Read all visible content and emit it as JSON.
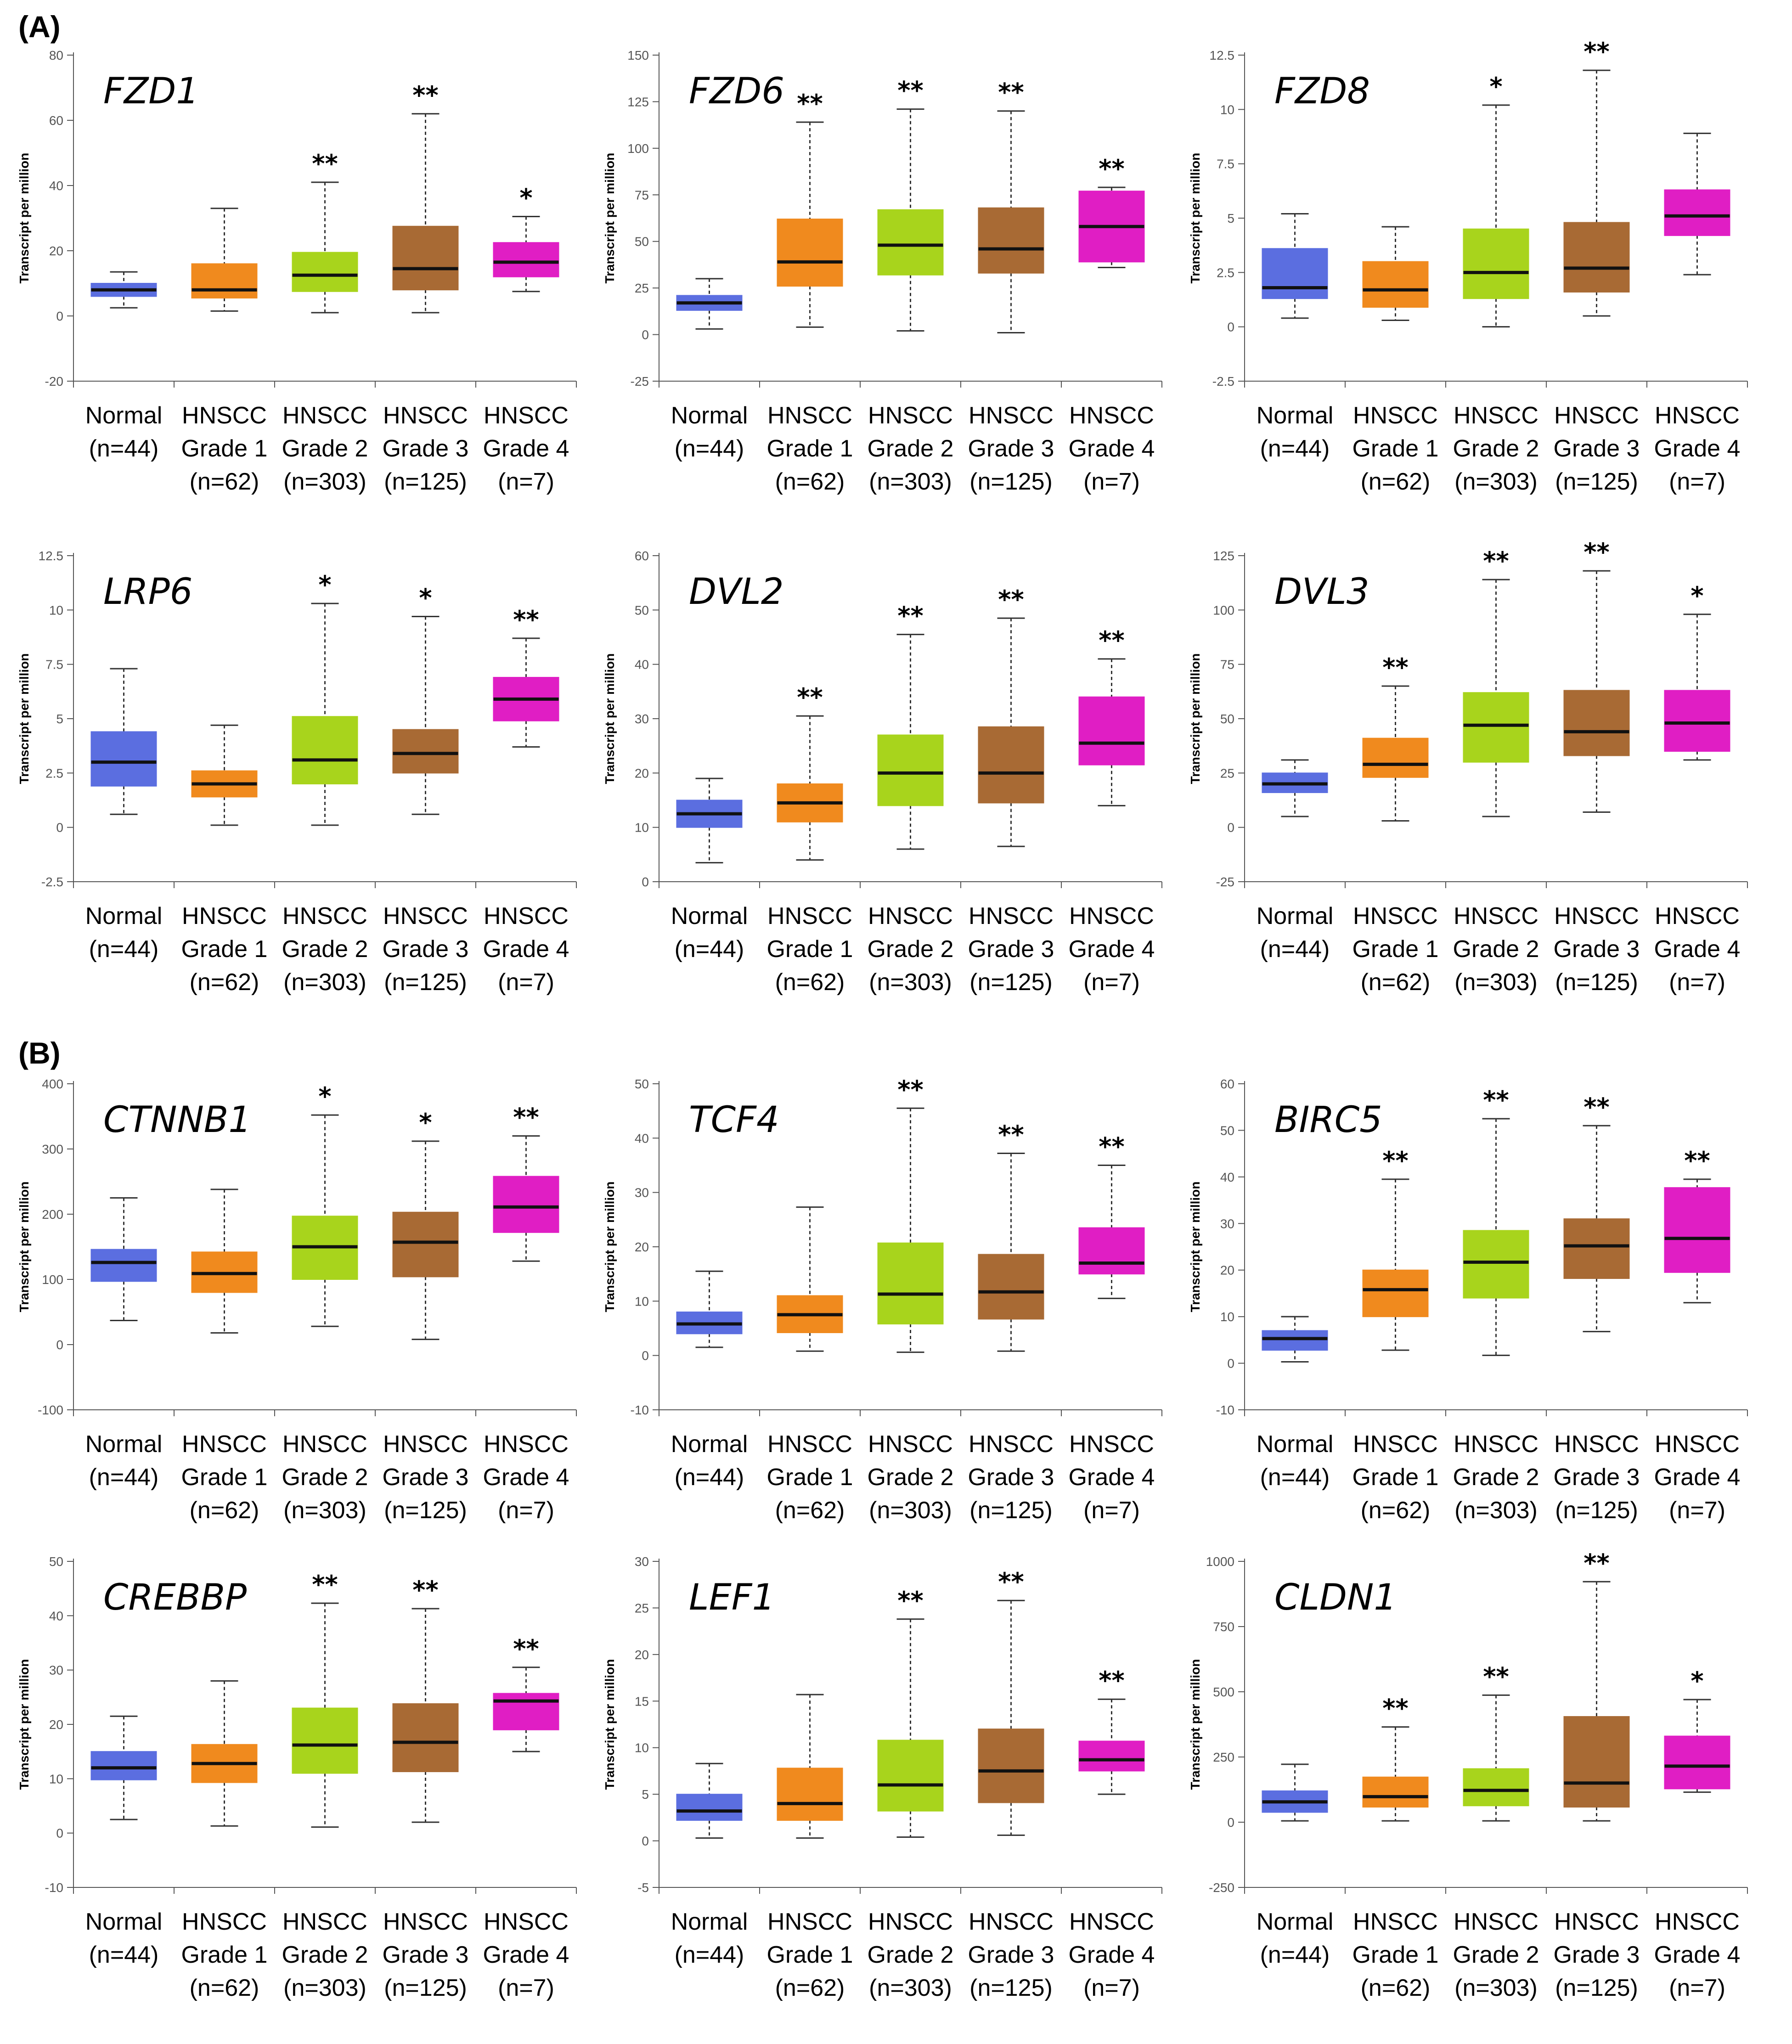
{
  "panels": {
    "A": "(A)",
    "B": "(B)"
  },
  "colors": {
    "Normal": "#5b6ee0",
    "Grade 1": "#f08a1e",
    "Grade 2": "#a8d41c",
    "Grade 3": "#a86a34",
    "Grade 4": "#e01ec4"
  },
  "chart_data": [
    {
      "type": "box",
      "title": "FZD1",
      "ylabel": "Transcript per million",
      "ylim": [
        -20,
        80
      ],
      "yticks": [
        -20,
        0,
        20,
        40,
        60,
        80
      ],
      "categories": [
        [
          "Normal",
          "(n=44)"
        ],
        [
          "HNSCC",
          "Grade 1",
          "(n=62)"
        ],
        [
          "HNSCC",
          "Grade 2",
          "(n=303)"
        ],
        [
          "HNSCC",
          "Grade 3",
          "(n=125)"
        ],
        [
          "HNSCC",
          "Grade 4",
          "(n=7)"
        ]
      ],
      "boxes": [
        {
          "min": 2.5,
          "q1": 6,
          "median": 8,
          "q3": 10,
          "max": 13.5,
          "sig": ""
        },
        {
          "min": 1.5,
          "q1": 5.5,
          "median": 8,
          "q3": 16,
          "max": 33,
          "sig": ""
        },
        {
          "min": 1,
          "q1": 7.5,
          "median": 12.5,
          "q3": 19.5,
          "max": 41,
          "sig": "**"
        },
        {
          "min": 1,
          "q1": 8,
          "median": 14.5,
          "q3": 27.5,
          "max": 62,
          "sig": "**"
        },
        {
          "min": 7.5,
          "q1": 12,
          "median": 16.5,
          "q3": 22.5,
          "max": 30.5,
          "sig": "*"
        }
      ]
    },
    {
      "type": "box",
      "title": "FZD6",
      "ylabel": "Transcript per million",
      "ylim": [
        -25,
        150
      ],
      "yticks": [
        -25,
        0,
        25,
        50,
        75,
        100,
        125,
        150
      ],
      "categories": [
        [
          "Normal",
          "(n=44)"
        ],
        [
          "HNSCC",
          "Grade 1",
          "(n=62)"
        ],
        [
          "HNSCC",
          "Grade 2",
          "(n=303)"
        ],
        [
          "HNSCC",
          "Grade 3",
          "(n=125)"
        ],
        [
          "HNSCC",
          "Grade 4",
          "(n=7)"
        ]
      ],
      "boxes": [
        {
          "min": 3,
          "q1": 13,
          "median": 17,
          "q3": 21,
          "max": 30,
          "sig": ""
        },
        {
          "min": 4,
          "q1": 26,
          "median": 39,
          "q3": 62,
          "max": 114,
          "sig": "**"
        },
        {
          "min": 2,
          "q1": 32,
          "median": 48,
          "q3": 67,
          "max": 121,
          "sig": "**"
        },
        {
          "min": 1,
          "q1": 33,
          "median": 46,
          "q3": 68,
          "max": 120,
          "sig": "**"
        },
        {
          "min": 36,
          "q1": 39,
          "median": 58,
          "q3": 77,
          "max": 79,
          "sig": "**"
        }
      ]
    },
    {
      "type": "box",
      "title": "FZD8",
      "ylabel": "Transcript per million",
      "ylim": [
        -2.5,
        12.5
      ],
      "yticks": [
        -2.5,
        0,
        2.5,
        5,
        7.5,
        10,
        12.5
      ],
      "categories": [
        [
          "Normal",
          "(n=44)"
        ],
        [
          "HNSCC",
          "Grade 1",
          "(n=62)"
        ],
        [
          "HNSCC",
          "Grade 2",
          "(n=303)"
        ],
        [
          "HNSCC",
          "Grade 3",
          "(n=125)"
        ],
        [
          "HNSCC",
          "Grade 4",
          "(n=7)"
        ]
      ],
      "boxes": [
        {
          "min": 0.4,
          "q1": 1.3,
          "median": 1.8,
          "q3": 3.6,
          "max": 5.2,
          "sig": ""
        },
        {
          "min": 0.3,
          "q1": 0.9,
          "median": 1.7,
          "q3": 3,
          "max": 4.6,
          "sig": ""
        },
        {
          "min": 0,
          "q1": 1.3,
          "median": 2.5,
          "q3": 4.5,
          "max": 10.2,
          "sig": "*"
        },
        {
          "min": 0.5,
          "q1": 1.6,
          "median": 2.7,
          "q3": 4.8,
          "max": 11.8,
          "sig": "**"
        },
        {
          "min": 2.4,
          "q1": 4.2,
          "median": 5.1,
          "q3": 6.3,
          "max": 8.9,
          "sig": ""
        }
      ]
    },
    {
      "type": "box",
      "title": "LRP6",
      "ylabel": "Transcript per million",
      "ylim": [
        -2.5,
        12.5
      ],
      "yticks": [
        -2.5,
        0,
        2.5,
        5,
        7.5,
        10,
        12.5
      ],
      "categories": [
        [
          "Normal",
          "(n=44)"
        ],
        [
          "HNSCC",
          "Grade 1",
          "(n=62)"
        ],
        [
          "HNSCC",
          "Grade 2",
          "(n=303)"
        ],
        [
          "HNSCC",
          "Grade 3",
          "(n=125)"
        ],
        [
          "HNSCC",
          "Grade 4",
          "(n=7)"
        ]
      ],
      "boxes": [
        {
          "min": 0.6,
          "q1": 1.9,
          "median": 3,
          "q3": 4.4,
          "max": 7.3,
          "sig": ""
        },
        {
          "min": 0.1,
          "q1": 1.4,
          "median": 2,
          "q3": 2.6,
          "max": 4.7,
          "sig": ""
        },
        {
          "min": 0.1,
          "q1": 2,
          "median": 3.1,
          "q3": 5.1,
          "max": 10.3,
          "sig": "*"
        },
        {
          "min": 0.6,
          "q1": 2.5,
          "median": 3.4,
          "q3": 4.5,
          "max": 9.7,
          "sig": "*"
        },
        {
          "min": 3.7,
          "q1": 4.9,
          "median": 5.9,
          "q3": 6.9,
          "max": 8.7,
          "sig": "**"
        }
      ]
    },
    {
      "type": "box",
      "title": "DVL2",
      "ylabel": "Transcript per million",
      "ylim": [
        0,
        60
      ],
      "yticks": [
        0,
        10,
        20,
        30,
        40,
        50,
        60
      ],
      "categories": [
        [
          "Normal",
          "(n=44)"
        ],
        [
          "HNSCC",
          "Grade 1",
          "(n=62)"
        ],
        [
          "HNSCC",
          "Grade 2",
          "(n=303)"
        ],
        [
          "HNSCC",
          "Grade 3",
          "(n=125)"
        ],
        [
          "HNSCC",
          "Grade 4",
          "(n=7)"
        ]
      ],
      "boxes": [
        {
          "min": 3.5,
          "q1": 10,
          "median": 12.5,
          "q3": 15,
          "max": 19,
          "sig": ""
        },
        {
          "min": 4,
          "q1": 11,
          "median": 14.5,
          "q3": 18,
          "max": 30.5,
          "sig": "**"
        },
        {
          "min": 6,
          "q1": 14,
          "median": 20,
          "q3": 27,
          "max": 45.5,
          "sig": "**"
        },
        {
          "min": 6.5,
          "q1": 14.5,
          "median": 20,
          "q3": 28.5,
          "max": 48.5,
          "sig": "**"
        },
        {
          "min": 14,
          "q1": 21.5,
          "median": 25.5,
          "q3": 34,
          "max": 41,
          "sig": "**"
        }
      ]
    },
    {
      "type": "box",
      "title": "DVL3",
      "ylabel": "Transcript per million",
      "ylim": [
        -25,
        125
      ],
      "yticks": [
        -25,
        0,
        25,
        50,
        75,
        100,
        125
      ],
      "categories": [
        [
          "Normal",
          "(n=44)"
        ],
        [
          "HNSCC",
          "Grade 1",
          "(n=62)"
        ],
        [
          "HNSCC",
          "Grade 2",
          "(n=303)"
        ],
        [
          "HNSCC",
          "Grade 3",
          "(n=125)"
        ],
        [
          "HNSCC",
          "Grade 4",
          "(n=7)"
        ]
      ],
      "boxes": [
        {
          "min": 5,
          "q1": 16,
          "median": 20,
          "q3": 25,
          "max": 31,
          "sig": ""
        },
        {
          "min": 3,
          "q1": 23,
          "median": 29,
          "q3": 41,
          "max": 65,
          "sig": "**"
        },
        {
          "min": 5,
          "q1": 30,
          "median": 47,
          "q3": 62,
          "max": 114,
          "sig": "**"
        },
        {
          "min": 7,
          "q1": 33,
          "median": 44,
          "q3": 63,
          "max": 118,
          "sig": "**"
        },
        {
          "min": 31,
          "q1": 35,
          "median": 48,
          "q3": 63,
          "max": 98,
          "sig": "*"
        }
      ]
    },
    {
      "type": "box",
      "title": "CTNNB1",
      "ylabel": "Transcript per million",
      "ylim": [
        -100,
        400
      ],
      "yticks": [
        -100,
        0,
        100,
        200,
        300,
        400
      ],
      "categories": [
        [
          "Normal",
          "(n=44)"
        ],
        [
          "HNSCC",
          "Grade 1",
          "(n=62)"
        ],
        [
          "HNSCC",
          "Grade 2",
          "(n=303)"
        ],
        [
          "HNSCC",
          "Grade 3",
          "(n=125)"
        ],
        [
          "HNSCC",
          "Grade 4",
          "(n=7)"
        ]
      ],
      "boxes": [
        {
          "min": 37,
          "q1": 97,
          "median": 126,
          "q3": 146,
          "max": 225,
          "sig": ""
        },
        {
          "min": 18,
          "q1": 80,
          "median": 109,
          "q3": 142,
          "max": 238,
          "sig": ""
        },
        {
          "min": 28,
          "q1": 100,
          "median": 150,
          "q3": 197,
          "max": 352,
          "sig": "*"
        },
        {
          "min": 8,
          "q1": 104,
          "median": 157,
          "q3": 203,
          "max": 312,
          "sig": "*"
        },
        {
          "min": 128,
          "q1": 172,
          "median": 211,
          "q3": 258,
          "max": 320,
          "sig": "**"
        }
      ]
    },
    {
      "type": "box",
      "title": "TCF4",
      "ylabel": "Transcript per million",
      "ylim": [
        -10,
        50
      ],
      "yticks": [
        -10,
        0,
        10,
        20,
        30,
        40,
        50
      ],
      "categories": [
        [
          "Normal",
          "(n=44)"
        ],
        [
          "HNSCC",
          "Grade 1",
          "(n=62)"
        ],
        [
          "HNSCC",
          "Grade 2",
          "(n=303)"
        ],
        [
          "HNSCC",
          "Grade 3",
          "(n=125)"
        ],
        [
          "HNSCC",
          "Grade 4",
          "(n=7)"
        ]
      ],
      "boxes": [
        {
          "min": 1.5,
          "q1": 4,
          "median": 5.8,
          "q3": 8,
          "max": 15.5,
          "sig": ""
        },
        {
          "min": 0.8,
          "q1": 4.2,
          "median": 7.5,
          "q3": 11,
          "max": 27.3,
          "sig": ""
        },
        {
          "min": 0.6,
          "q1": 5.8,
          "median": 11.3,
          "q3": 20.7,
          "max": 45.5,
          "sig": "**"
        },
        {
          "min": 0.8,
          "q1": 6.7,
          "median": 11.7,
          "q3": 18.6,
          "max": 37.2,
          "sig": "**"
        },
        {
          "min": 10.5,
          "q1": 15,
          "median": 17,
          "q3": 23.5,
          "max": 35,
          "sig": "**"
        }
      ]
    },
    {
      "type": "box",
      "title": "BIRC5",
      "ylabel": "Transcript per million",
      "ylim": [
        -10,
        60
      ],
      "yticks": [
        -10,
        0,
        10,
        20,
        30,
        40,
        50,
        60
      ],
      "categories": [
        [
          "Normal",
          "(n=44)"
        ],
        [
          "HNSCC",
          "Grade 1",
          "(n=62)"
        ],
        [
          "HNSCC",
          "Grade 2",
          "(n=303)"
        ],
        [
          "HNSCC",
          "Grade 3",
          "(n=125)"
        ],
        [
          "HNSCC",
          "Grade 4",
          "(n=7)"
        ]
      ],
      "boxes": [
        {
          "min": 0.3,
          "q1": 2.8,
          "median": 5.3,
          "q3": 7,
          "max": 10,
          "sig": ""
        },
        {
          "min": 2.8,
          "q1": 10,
          "median": 15.8,
          "q3": 20,
          "max": 39.5,
          "sig": "**"
        },
        {
          "min": 1.7,
          "q1": 14,
          "median": 21.7,
          "q3": 28.5,
          "max": 52.5,
          "sig": "**"
        },
        {
          "min": 6.8,
          "q1": 18.2,
          "median": 25.2,
          "q3": 31,
          "max": 51,
          "sig": "**"
        },
        {
          "min": 13,
          "q1": 19.5,
          "median": 26.8,
          "q3": 37.7,
          "max": 39.5,
          "sig": "**"
        }
      ]
    },
    {
      "type": "box",
      "title": "CREBBP",
      "ylabel": "Transcript per million",
      "ylim": [
        -10,
        50
      ],
      "yticks": [
        -10,
        0,
        10,
        20,
        30,
        40,
        50
      ],
      "categories": [
        [
          "Normal",
          "(n=44)"
        ],
        [
          "HNSCC",
          "Grade 1",
          "(n=62)"
        ],
        [
          "HNSCC",
          "Grade 2",
          "(n=303)"
        ],
        [
          "HNSCC",
          "Grade 3",
          "(n=125)"
        ],
        [
          "HNSCC",
          "Grade 4",
          "(n=7)"
        ]
      ],
      "boxes": [
        {
          "min": 2.5,
          "q1": 9.8,
          "median": 12,
          "q3": 15,
          "max": 21.5,
          "sig": ""
        },
        {
          "min": 1.3,
          "q1": 9.3,
          "median": 12.8,
          "q3": 16.3,
          "max": 28,
          "sig": ""
        },
        {
          "min": 1.1,
          "q1": 11,
          "median": 16.2,
          "q3": 23,
          "max": 42.3,
          "sig": "**"
        },
        {
          "min": 2,
          "q1": 11.3,
          "median": 16.7,
          "q3": 23.8,
          "max": 41.3,
          "sig": "**"
        },
        {
          "min": 15,
          "q1": 19,
          "median": 24.3,
          "q3": 25.7,
          "max": 30.5,
          "sig": "**"
        }
      ]
    },
    {
      "type": "box",
      "title": "LEF1",
      "ylabel": "Transcript per million",
      "ylim": [
        -5,
        30
      ],
      "yticks": [
        -5,
        0,
        5,
        10,
        15,
        20,
        25,
        30
      ],
      "categories": [
        [
          "Normal",
          "(n=44)"
        ],
        [
          "HNSCC",
          "Grade 1",
          "(n=62)"
        ],
        [
          "HNSCC",
          "Grade 2",
          "(n=303)"
        ],
        [
          "HNSCC",
          "Grade 3",
          "(n=125)"
        ],
        [
          "HNSCC",
          "Grade 4",
          "(n=7)"
        ]
      ],
      "boxes": [
        {
          "min": 0.3,
          "q1": 2.2,
          "median": 3.2,
          "q3": 5,
          "max": 8.3,
          "sig": ""
        },
        {
          "min": 0.3,
          "q1": 2.2,
          "median": 4,
          "q3": 7.8,
          "max": 15.7,
          "sig": ""
        },
        {
          "min": 0.4,
          "q1": 3.2,
          "median": 6,
          "q3": 10.8,
          "max": 23.8,
          "sig": "**"
        },
        {
          "min": 0.6,
          "q1": 4.1,
          "median": 7.5,
          "q3": 12,
          "max": 25.8,
          "sig": "**"
        },
        {
          "min": 5,
          "q1": 7.5,
          "median": 8.7,
          "q3": 10.7,
          "max": 15.2,
          "sig": "**"
        }
      ]
    },
    {
      "type": "box",
      "title": "CLDN1",
      "ylabel": "Transcript per million",
      "ylim": [
        -250,
        1000
      ],
      "yticks": [
        -250,
        0,
        250,
        500,
        750,
        1000
      ],
      "categories": [
        [
          "Normal",
          "(n=44)"
        ],
        [
          "HNSCC",
          "Grade 1",
          "(n=62)"
        ],
        [
          "HNSCC",
          "Grade 2",
          "(n=303)"
        ],
        [
          "HNSCC",
          "Grade 3",
          "(n=125)"
        ],
        [
          "HNSCC",
          "Grade 4",
          "(n=7)"
        ]
      ],
      "boxes": [
        {
          "min": 5,
          "q1": 38,
          "median": 78,
          "q3": 120,
          "max": 222,
          "sig": ""
        },
        {
          "min": 5,
          "q1": 58,
          "median": 98,
          "q3": 173,
          "max": 365,
          "sig": "**"
        },
        {
          "min": 5,
          "q1": 63,
          "median": 122,
          "q3": 205,
          "max": 487,
          "sig": "**"
        },
        {
          "min": 5,
          "q1": 58,
          "median": 150,
          "q3": 405,
          "max": 922,
          "sig": "**"
        },
        {
          "min": 115,
          "q1": 128,
          "median": 215,
          "q3": 330,
          "max": 470,
          "sig": "*"
        }
      ]
    }
  ]
}
